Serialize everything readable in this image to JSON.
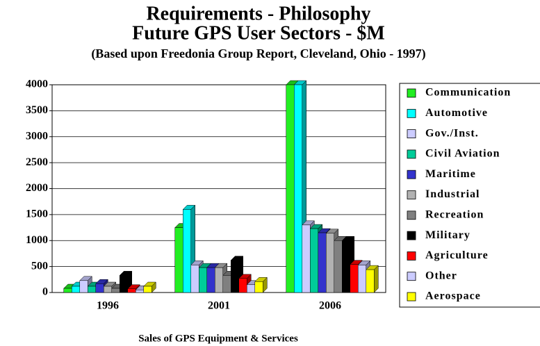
{
  "chart_data": {
    "type": "bar3d",
    "title": [
      "Requirements - Philosophy",
      "Future GPS User Sectors - $M"
    ],
    "subtitle": "(Based upon Freedonia Group Report, Cleveland, Ohio - 1997)",
    "x_label": "Sales of GPS Equipment & Services",
    "categories": [
      "1996",
      "2001",
      "2006"
    ],
    "series": [
      {
        "name": "Communication",
        "color": "#22ee22",
        "values": [
          80,
          1250,
          4000
        ]
      },
      {
        "name": "Automotive",
        "color": "#00ffff",
        "values": [
          120,
          1600,
          4000
        ]
      },
      {
        "name": "Gov./Inst.",
        "color": "#ccccff",
        "values": [
          230,
          530,
          1300
        ]
      },
      {
        "name": "Civil Aviation",
        "color": "#00cc99",
        "values": [
          120,
          480,
          1230
        ]
      },
      {
        "name": "Maritime",
        "color": "#3333cc",
        "values": [
          170,
          480,
          1150
        ]
      },
      {
        "name": "Industrial",
        "color": "#b2b2b2",
        "values": [
          120,
          480,
          1140
        ]
      },
      {
        "name": "Recreation",
        "color": "#808080",
        "values": [
          80,
          330,
          1000
        ]
      },
      {
        "name": "Military",
        "color": "#000000",
        "values": [
          330,
          620,
          1000
        ]
      },
      {
        "name": "Agriculture",
        "color": "#ff0000",
        "values": [
          70,
          270,
          540
        ]
      },
      {
        "name": "Other",
        "color": "#ccccff",
        "values": [
          50,
          150,
          530
        ]
      },
      {
        "name": "Aerospace",
        "color": "#ffff00",
        "values": [
          120,
          210,
          440
        ]
      }
    ],
    "ylim": [
      0,
      4000
    ],
    "yticks": [
      0,
      500,
      1000,
      1500,
      2000,
      2500,
      3000,
      3500,
      4000
    ],
    "grid": true,
    "legend": "right"
  }
}
